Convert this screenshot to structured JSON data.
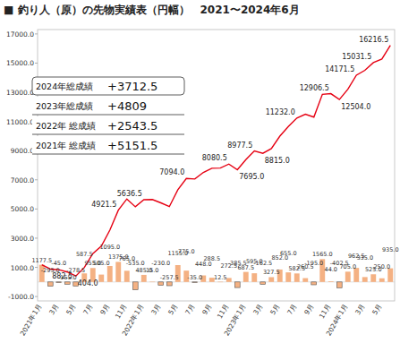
{
  "chart_data": {
    "type": "combo",
    "title": "■ 釣り人（原）の先物実績表（円幅）　2021〜2024年6月",
    "categories": [
      "2021年1月",
      null,
      "3月",
      null,
      "5月",
      null,
      "7月",
      null,
      "9月",
      null,
      "11月",
      null,
      "2022年1月",
      null,
      "3月",
      null,
      "5月",
      null,
      "7月",
      null,
      "9月",
      null,
      "11月",
      null,
      "2023年1月",
      null,
      "3月",
      null,
      "5月",
      null,
      "7月",
      null,
      "9月",
      null,
      "11月",
      null,
      "2024年1月",
      null,
      "3月",
      null,
      "5月",
      null
    ],
    "series": [
      {
        "type": "bar",
        "color": "#f4b183",
        "data_labels": true,
        "values": [
          1177.5,
          -295,
          -45,
          -155,
          -278.5,
          587.5,
          955,
          505,
          1095,
          1375,
          765,
          -535,
          485,
          15,
          -230,
          -257.5,
          1155,
          775,
          -35,
          448,
          288.5,
          12.5,
          272.5,
          -385.5,
          687.5,
          595,
          -162.5,
          327.5,
          852,
          655,
          582.5,
          260.5,
          -195,
          1565,
          44,
          -402.5,
          705,
          962.5,
          335,
          525,
          250,
          935
        ],
        "value_labels": [
          "1177.5",
          "-295.0",
          "-45.0",
          "-155.0",
          "-278.5",
          "587.5",
          "955.0",
          "505.0",
          "1095.0",
          "1375.0",
          "765.0",
          "-535.0",
          "485.0",
          "15.0",
          "-230.0",
          "-257.5",
          "1155.0",
          "775.0",
          "-35.0",
          "448.0",
          "288.5",
          "12.5",
          "272.5",
          "-385.5",
          "687.5",
          "595.0",
          "-162.5",
          "327.5",
          "852.0",
          "655.0",
          "582.5",
          "260.5",
          "-195.0",
          "1565.0",
          "44.0",
          "-402.5",
          "705.0",
          "962.5",
          "335.0",
          "525.0",
          "250.0",
          "935.0"
        ]
      },
      {
        "type": "line",
        "color": "#e60012",
        "data_labels": true,
        "marker": "none",
        "line_style": "solid",
        "values": [
          1177.5,
          882.5,
          837.5,
          682.5,
          404.0,
          991.5,
          1946.5,
          2451.5,
          3546.5,
          4921.5,
          5686.5,
          5151.5,
          5636.5,
          5651.5,
          5421.5,
          5164.0,
          6319.0,
          7094.0,
          7059.0,
          7507.0,
          7795.5,
          7808.0,
          8080.5,
          7695.0,
          8382.5,
          8977.5,
          8815.0,
          9142.5,
          9994.5,
          10649.5,
          11232.0,
          11492.5,
          11297.5,
          12862.5,
          12906.5,
          12504.0,
          13209.0,
          14171.5,
          14506.5,
          15031.5,
          15281.5,
          16216.5
        ],
        "value_labels": [
          null,
          "882.5",
          null,
          null,
          "404.0",
          null,
          null,
          null,
          null,
          "4921.5",
          null,
          null,
          "5636.5",
          null,
          null,
          null,
          null,
          "7094.0",
          null,
          null,
          null,
          null,
          "8080.5",
          "7695.0",
          null,
          "8977.5",
          "8815.0",
          null,
          null,
          null,
          "11232.0",
          null,
          null,
          null,
          "12906.5",
          "12504.0",
          null,
          "14171.5",
          null,
          "15031.5",
          null,
          "16216.5"
        ]
      }
    ],
    "ylim": [
      -1300,
      17300
    ],
    "yticks": [
      {
        "value": -1000,
        "label": "-1000.0"
      },
      {
        "value": 1000,
        "label": "1000.0"
      },
      {
        "value": 3000,
        "label": "3000.0"
      },
      {
        "value": 5000,
        "label": "5000.0"
      },
      {
        "value": 7000,
        "label": "7000.0"
      },
      {
        "value": 9000,
        "label": "9000.0"
      },
      {
        "value": 11000,
        "label": "11000.0"
      },
      {
        "value": 13000,
        "label": "13000.0"
      },
      {
        "value": 15000,
        "label": "15000.0"
      },
      {
        "value": 17000,
        "label": "17000.0"
      }
    ],
    "grid": false,
    "annotations": [
      {
        "text": "2024年総成績",
        "value": "+3712.5"
      },
      {
        "text": "2023年総成績",
        "value": "+4809"
      },
      {
        "text": "2022年 総成績",
        "value": "+2543.5"
      },
      {
        "text": "2021年 総成績",
        "value": "+5151.5"
      }
    ]
  }
}
